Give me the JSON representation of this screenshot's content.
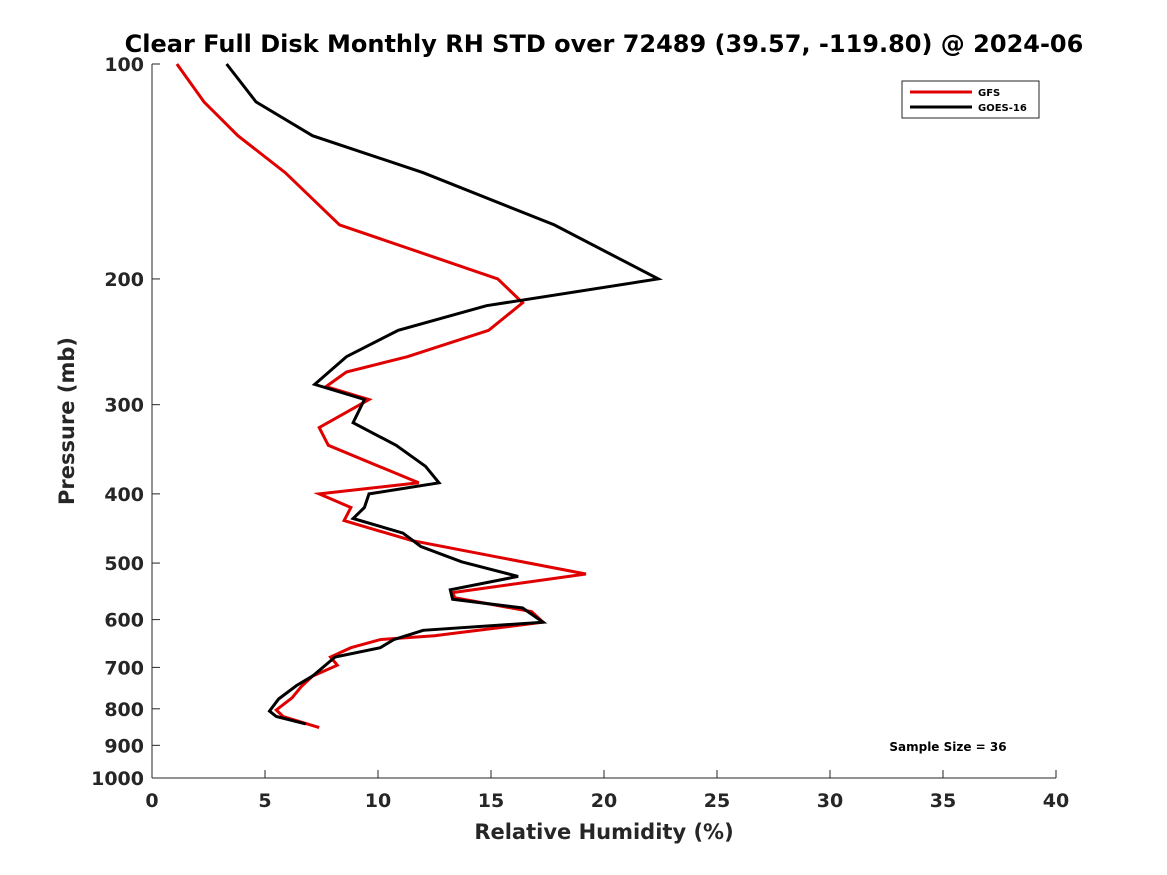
{
  "chart_data": {
    "type": "line",
    "title": "Clear Full Disk Monthly RH STD over 72489 (39.57, -119.80) @ 2024-06",
    "xlabel": "Relative Humidity (%)",
    "ylabel": "Pressure (mb)",
    "xlim": [
      0,
      40
    ],
    "ylim": [
      100,
      1000
    ],
    "yscale": "log-reversed",
    "xticks": [
      0,
      5,
      10,
      15,
      20,
      25,
      30,
      35,
      40
    ],
    "yticks": [
      100,
      200,
      300,
      400,
      500,
      600,
      700,
      800,
      900,
      1000
    ],
    "legend_position": "top-right",
    "annotation": "Sample Size = 36",
    "series": [
      {
        "name": "GFS",
        "color": "#e00000",
        "x": [
          1.1,
          2.3,
          3.8,
          5.9,
          8.3,
          15.3,
          16.4,
          14.9,
          11.3,
          8.6,
          7.7,
          9.6,
          7.4,
          7.8,
          11.8,
          7.4,
          8.8,
          8.5,
          11.5,
          19.2,
          13.3,
          13.4,
          16.8,
          17.3,
          12.5,
          10.1,
          8.8,
          7.9,
          8.2,
          7.1,
          6.6,
          6.2,
          5.5,
          5.8,
          7.4
        ],
        "y": [
          100,
          113,
          126,
          142,
          168,
          200,
          216,
          236,
          257,
          270,
          283,
          295,
          323,
          342,
          386,
          400,
          418,
          436,
          465,
          518,
          550,
          559,
          585,
          605,
          632,
          640,
          657,
          677,
          695,
          720,
          745,
          772,
          803,
          820,
          850
        ]
      },
      {
        "name": "GOES-16",
        "color": "#000000",
        "x": [
          3.3,
          4.6,
          7.1,
          12.0,
          17.8,
          22.4,
          14.8,
          10.9,
          8.6,
          7.2,
          9.4,
          8.9,
          10.8,
          12.1,
          12.7,
          9.6,
          9.4,
          8.9,
          11.1,
          11.9,
          13.7,
          16.2,
          13.2,
          13.3,
          16.4,
          17.3,
          12.0,
          10.7,
          10.1,
          8.1,
          7.1,
          6.4,
          5.6,
          5.2,
          5.5,
          6.8
        ],
        "y": [
          100,
          113,
          126,
          142,
          168,
          200,
          218,
          236,
          257,
          281,
          295,
          318,
          342,
          366,
          386,
          400,
          418,
          433,
          454,
          474,
          498,
          522,
          545,
          562,
          578,
          605,
          621,
          640,
          657,
          677,
          720,
          742,
          775,
          806,
          820,
          840
        ]
      }
    ]
  }
}
